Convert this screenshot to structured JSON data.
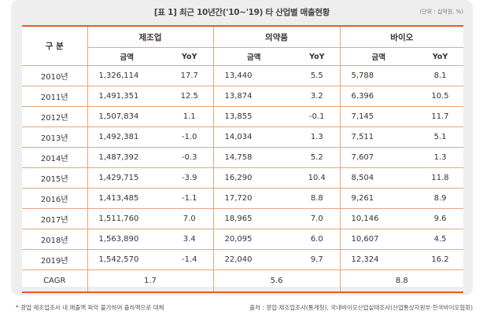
{
  "title": "[표 1] 최근 10년간('10~'19) 타 산업별 매출현황",
  "unit": "(단위 : 십억원, %)",
  "header": {
    "year_label": "구 분",
    "groups": [
      "제조업",
      "의약품",
      "바이오"
    ],
    "sub_labels": [
      "금액",
      "YoY",
      "금액",
      "YoY",
      "금액",
      "YoY"
    ]
  },
  "rows": [
    {
      "year": "2010년",
      "mfg_amt": "1,326,114",
      "mfg_yoy": "17.7",
      "pharma_amt": "13,440",
      "pharma_yoy": "5.5",
      "bio_amt": "5,788",
      "bio_yoy": "8.1"
    },
    {
      "year": "2011년",
      "mfg_amt": "1,491,351",
      "mfg_yoy": "12.5",
      "pharma_amt": "13,874",
      "pharma_yoy": "3.2",
      "bio_amt": "6,396",
      "bio_yoy": "10.5"
    },
    {
      "year": "2012년",
      "mfg_amt": "1,507,834",
      "mfg_yoy": "1.1",
      "pharma_amt": "13,855",
      "pharma_yoy": "-0.1",
      "bio_amt": "7,145",
      "bio_yoy": "11.7"
    },
    {
      "year": "2013년",
      "mfg_amt": "1,492,381",
      "mfg_yoy": "-1.0",
      "pharma_amt": "14,034",
      "pharma_yoy": "1.3",
      "bio_amt": "7,511",
      "bio_yoy": "5.1"
    },
    {
      "year": "2014년",
      "mfg_amt": "1,487,392",
      "mfg_yoy": "-0.3",
      "pharma_amt": "14,758",
      "pharma_yoy": "5.2",
      "bio_amt": "7,607",
      "bio_yoy": "1.3"
    },
    {
      "year": "2015년",
      "mfg_amt": "1,429,715",
      "mfg_yoy": "-3.9",
      "pharma_amt": "16,290",
      "pharma_yoy": "10.4",
      "bio_amt": "8,504",
      "bio_yoy": "11.8"
    },
    {
      "year": "2016년",
      "mfg_amt": "1,413,485",
      "mfg_yoy": "-1.1",
      "pharma_amt": "17,720",
      "pharma_yoy": "8.8",
      "bio_amt": "9,261",
      "bio_yoy": "8.9"
    },
    {
      "year": "2017년",
      "mfg_amt": "1,511,760",
      "mfg_yoy": "7.0",
      "pharma_amt": "18,965",
      "pharma_yoy": "7.0",
      "bio_amt": "10,146",
      "bio_yoy": "9.6"
    },
    {
      "year": "2018년",
      "mfg_amt": "1,563,890",
      "mfg_yoy": "3.4",
      "pharma_amt": "20,095",
      "pharma_yoy": "6.0",
      "bio_amt": "10,607",
      "bio_yoy": "4.5"
    },
    {
      "year": "2019년",
      "mfg_amt": "1,542,570",
      "mfg_yoy": "-1.4",
      "pharma_amt": "22,040",
      "pharma_yoy": "9.7",
      "bio_amt": "12,324",
      "bio_yoy": "16.2"
    }
  ],
  "cagr": {
    "label": "CAGR",
    "mfg": "1.7",
    "pharma": "5.6",
    "bio": "8.8"
  },
  "footnote": "* 광업·제조업조사 내 매출액 파악 불가하여 출하액으로 대체",
  "source": "출처 : 광업·제조업조사(통계청), 국내바이오산업실태조사(산업통상자원부·한국바이오협회)",
  "colors": {
    "accent": "#e0601f",
    "rule": "#e6a57c",
    "panel": "#eeeeef"
  }
}
